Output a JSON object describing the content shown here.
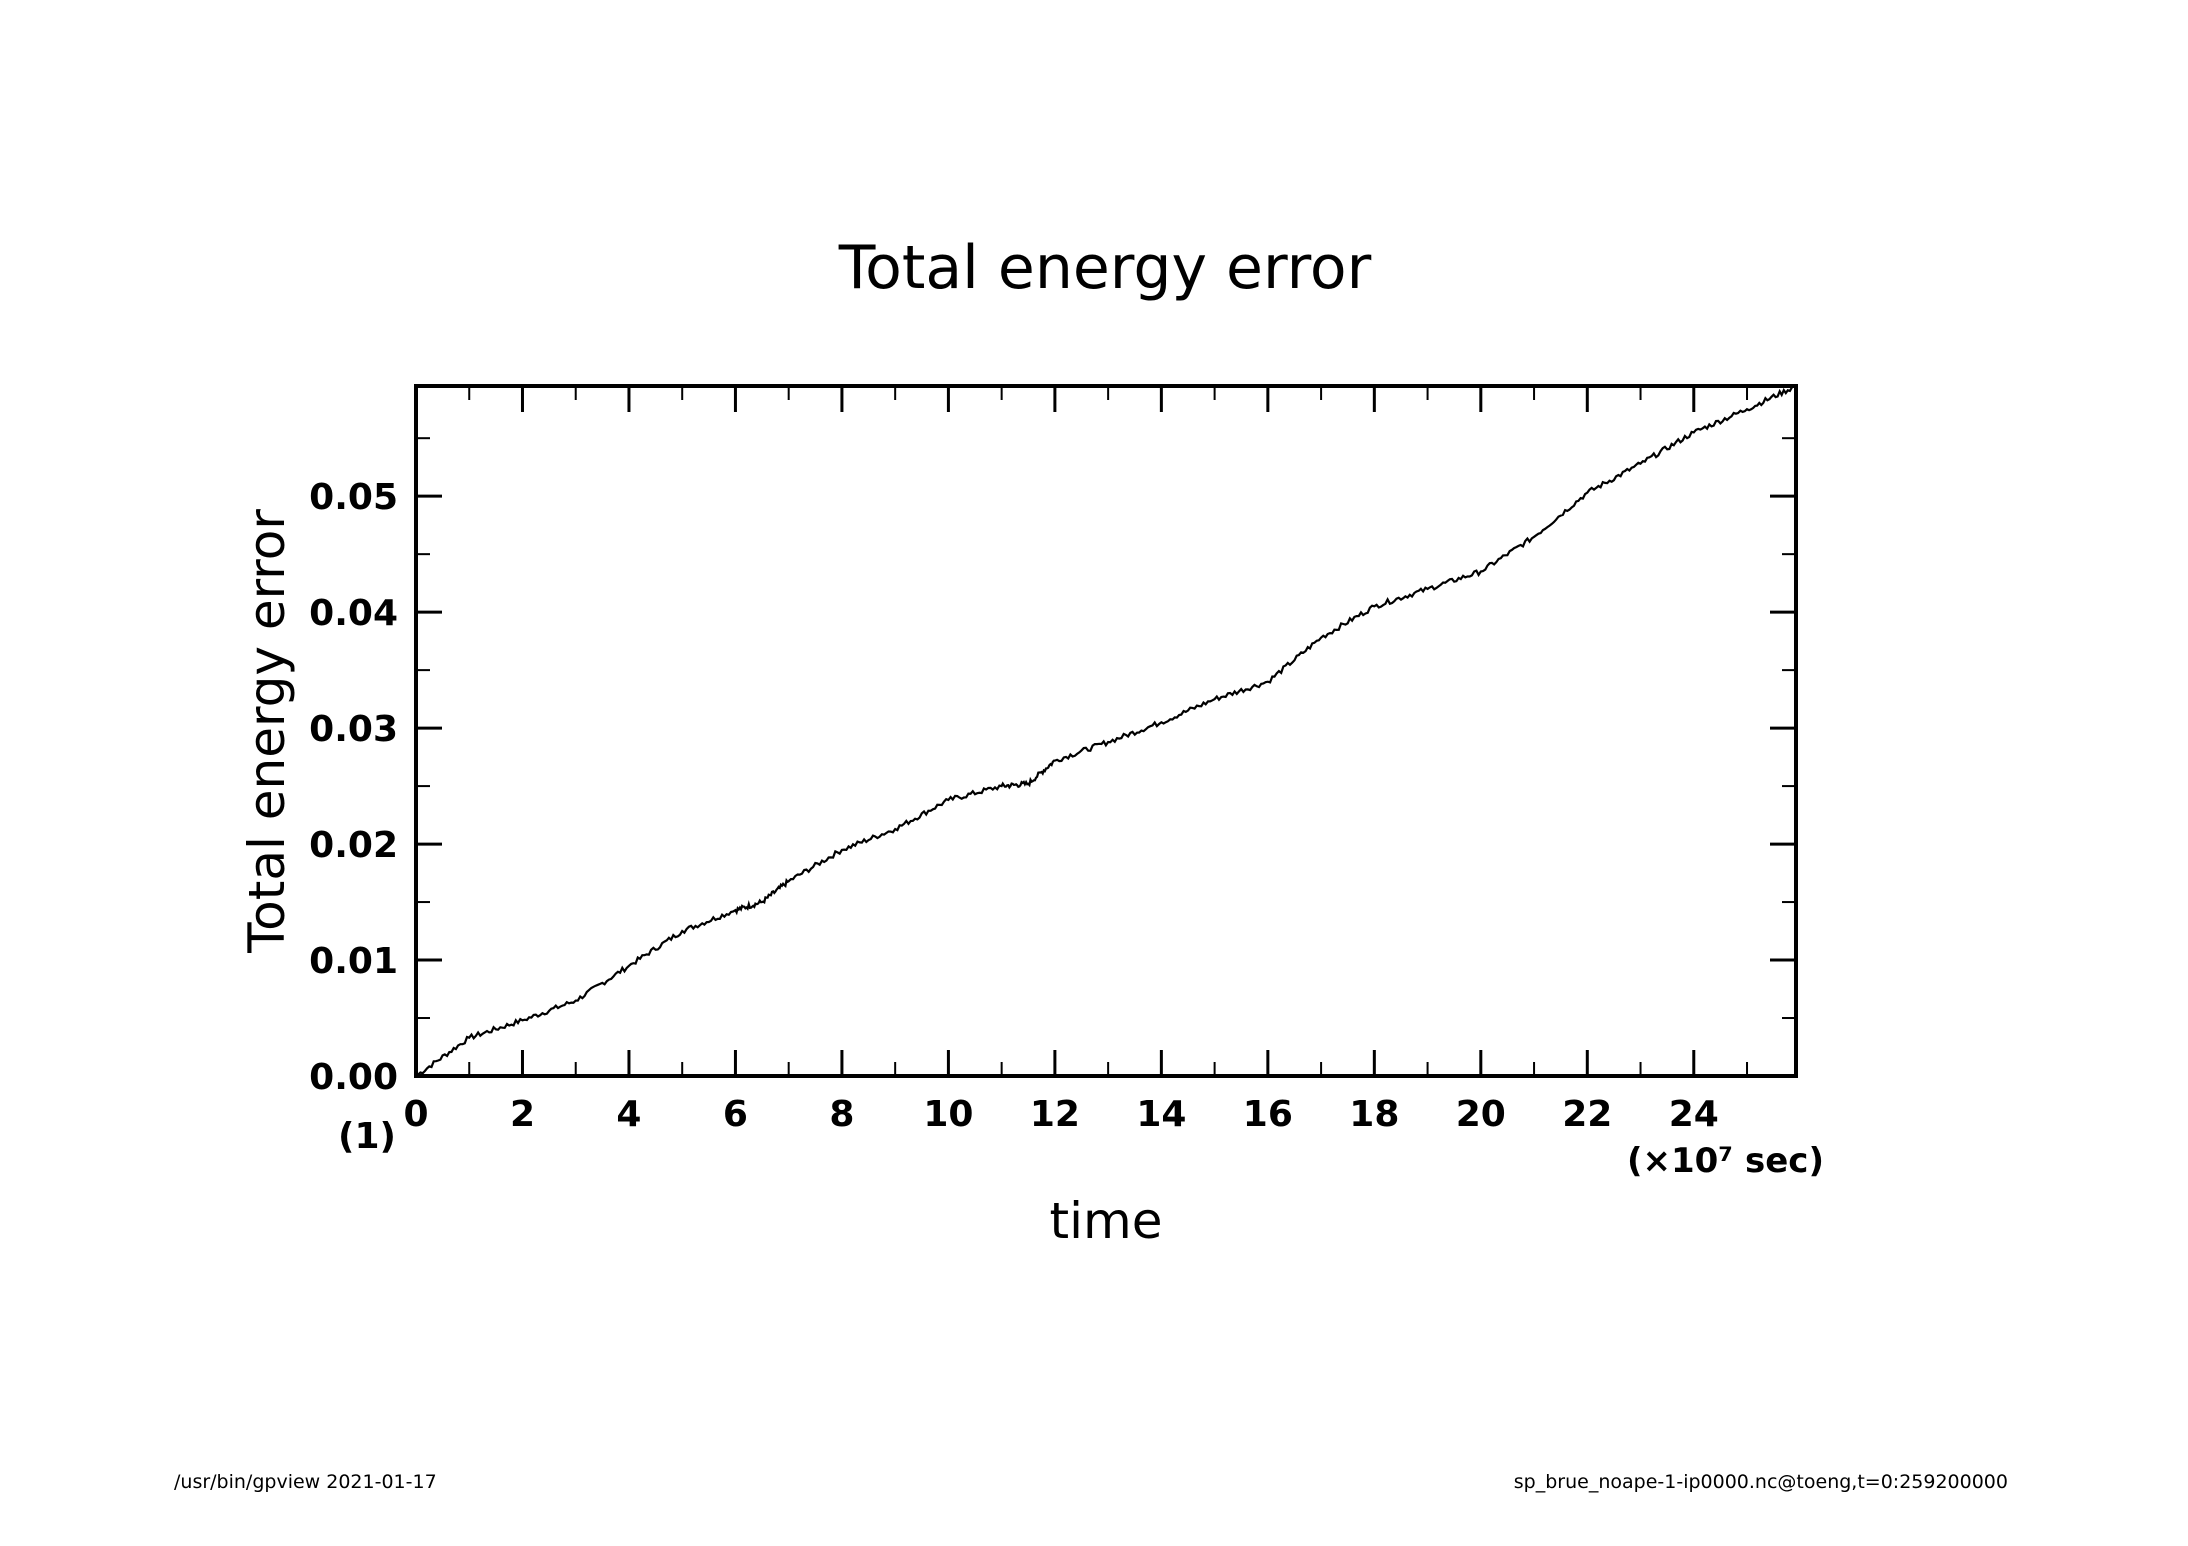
{
  "chart_data": {
    "type": "line",
    "title": "Total energy error",
    "xlabel": "time",
    "ylabel": "Total energy error",
    "x_unit_label": "(×10⁷ sec)",
    "y_multiplier_label": "(1)",
    "xlim": [
      0,
      25.92
    ],
    "ylim": [
      0,
      0.0595
    ],
    "x_ticks": [
      0,
      2,
      4,
      6,
      8,
      10,
      12,
      14,
      16,
      18,
      20,
      22,
      24
    ],
    "x_tick_labels": [
      "0",
      "2",
      "4",
      "6",
      "8",
      "10",
      "12",
      "14",
      "16",
      "18",
      "20",
      "22",
      "24"
    ],
    "y_ticks": [
      0,
      0.01,
      0.02,
      0.03,
      0.04,
      0.05
    ],
    "y_tick_labels": [
      "0.00",
      "0.01",
      "0.02",
      "0.03",
      "0.04",
      "0.05"
    ],
    "grid": false,
    "series": [
      {
        "x": [
          0,
          1,
          2,
          3,
          4,
          5,
          6,
          6.5,
          7,
          8,
          9,
          10,
          11,
          11.5,
          12,
          13,
          14,
          15,
          16,
          17,
          18,
          19,
          20,
          21,
          22,
          23,
          24,
          25,
          25.92
        ],
        "y": [
          0,
          0.0033,
          0.0048,
          0.0065,
          0.0095,
          0.0125,
          0.0143,
          0.015,
          0.0168,
          0.0195,
          0.0213,
          0.0238,
          0.025,
          0.0252,
          0.0272,
          0.0288,
          0.0305,
          0.0325,
          0.034,
          0.0378,
          0.0405,
          0.042,
          0.0435,
          0.0465,
          0.0503,
          0.0528,
          0.0555,
          0.0575,
          0.0595
        ]
      }
    ]
  },
  "footer": {
    "left": "/usr/bin/gpview   2021-01-17",
    "right": "sp_brue_noape-1-ip0000.nc@toeng,t=0:259200000"
  }
}
